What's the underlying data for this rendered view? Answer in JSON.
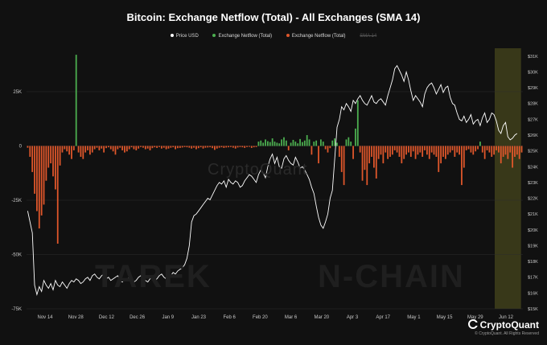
{
  "title": "Bitcoin: Exchange Netflow (Total) - All Exchanges (SMA 14)",
  "legend": [
    {
      "label": "Price USD",
      "color": "#ffffff",
      "enabled": true
    },
    {
      "label": "Exchange Netflow (Total)",
      "color": "#4caf50",
      "enabled": true
    },
    {
      "label": "Exchange Netflow (Total)",
      "color": "#e0572b",
      "enabled": true
    },
    {
      "label": "SMA 14",
      "color": "#555555",
      "enabled": false
    }
  ],
  "watermark": "CryptoQuant",
  "brand": "CryptoQuant",
  "copyright": "© CryptoQuant. All Rights Reserved",
  "overlay_text_left": "TAREK",
  "overlay_text_right": "N-CHAIN",
  "colors": {
    "background": "#111111",
    "inflow": "#4caf50",
    "outflow": "#e0572b",
    "price": "#ffffff",
    "highlight": "#5a5a20"
  },
  "chart_data": {
    "type": "bar",
    "title": "Bitcoin: Exchange Netflow (Total) - All Exchanges (SMA 14)",
    "x_ticks": [
      "Nov 14",
      "Nov 28",
      "Dec 12",
      "Dec 26",
      "Jan 9",
      "Jan 23",
      "Feb 6",
      "Feb 20",
      "Mar 6",
      "Mar 20",
      "Apr 3",
      "Apr 17",
      "May 1",
      "May 15",
      "May 29",
      "Jun 12"
    ],
    "left_axis": {
      "ticks": [
        "25K",
        "0",
        "-25K",
        "-50K",
        "-75K"
      ],
      "ylim": [
        -75000,
        45000
      ]
    },
    "right_axis": {
      "ticks": [
        "$31K",
        "$30K",
        "$29K",
        "$28K",
        "$27K",
        "$26K",
        "$25K",
        "$24K",
        "$23K",
        "$22K",
        "$21K",
        "$20K",
        "$19K",
        "$18K",
        "$17K",
        "$16K",
        "$15K"
      ],
      "ylim": [
        15000,
        31500
      ]
    },
    "highlight_range": {
      "start_day": 203,
      "end_day": 213
    },
    "series": [
      {
        "name": "Exchange Netflow (Total)",
        "kind": "bar",
        "values": [
          -800,
          -5000,
          -12000,
          -22000,
          -30000,
          -38000,
          -32000,
          -27000,
          -16000,
          -10000,
          -8000,
          -14000,
          -20000,
          -45000,
          -9000,
          -3000,
          -1500,
          -2500,
          -4000,
          -6000,
          -2000,
          42000,
          -3000,
          -5000,
          -6000,
          -3000,
          -2000,
          -4000,
          -3000,
          -1500,
          -800,
          -2000,
          -1200,
          -3000,
          -1000,
          -600,
          -1500,
          -2500,
          -4000,
          -1500,
          -800,
          -2000,
          -3000,
          -2500,
          -1500,
          -600,
          -1500,
          -2000,
          -1200,
          -500,
          -800,
          -1500,
          -1200,
          -2000,
          -1000,
          -600,
          -900,
          -500,
          -1200,
          -800,
          -1500,
          -1200,
          -800,
          -600,
          -1500,
          -1000,
          -900,
          -700,
          -500,
          -600,
          -800,
          -1200,
          -800,
          -1500,
          -1000,
          -600,
          -1200,
          -800,
          -700,
          -600,
          -1000,
          -1800,
          -1200,
          -800,
          -600,
          -900,
          -700,
          -600,
          -500,
          -800,
          -1200,
          -700,
          -500,
          -600,
          -900,
          -500,
          -400,
          -900,
          -600,
          -500,
          2000,
          2500,
          1500,
          3000,
          2200,
          1800,
          3500,
          2000,
          1500,
          1200,
          3000,
          4000,
          2500,
          -2000,
          1500,
          2800,
          2000,
          1200,
          3200,
          1800,
          2500,
          5000,
          3000,
          -4000,
          2000,
          2500,
          -8000,
          3000,
          2000,
          -1500,
          -3000,
          -1000,
          2500,
          3500,
          1500,
          -5000,
          -12000,
          -18000,
          3000,
          4000,
          2000,
          -6000,
          8000,
          21000,
          -3000,
          -16000,
          -11000,
          -18000,
          -8000,
          -5000,
          -10000,
          -15000,
          -6000,
          -4000,
          -8000,
          -3000,
          -6000,
          -5000,
          -4000,
          -2000,
          -3000,
          -5000,
          -8000,
          -6000,
          -4000,
          -3000,
          -5000,
          -2500,
          -6000,
          -4000,
          -3000,
          -5000,
          -2000,
          -4000,
          -6000,
          -3000,
          -4000,
          -5000,
          -12000,
          -8000,
          -5000,
          -6000,
          -4000,
          -3000,
          -2000,
          -5000,
          -3000,
          -4000,
          -18000,
          -10000,
          -2000,
          -1500,
          -3000,
          -4000,
          -2500,
          -1500,
          2000,
          -3000,
          -6000,
          -2000,
          -3000,
          -5000,
          -4000,
          -2000,
          -3000,
          -8000,
          -5000,
          -4000,
          -6000,
          -3000,
          -10000,
          -5000,
          -4000,
          -6000,
          -3000
        ]
      },
      {
        "name": "Price USD",
        "kind": "line",
        "values": [
          21200,
          20500,
          19800,
          16500,
          15900,
          16400,
          16100,
          16800,
          16500,
          16300,
          16600,
          16200,
          16800,
          16500,
          16400,
          16700,
          16500,
          16300,
          16600,
          16800,
          16700,
          16900,
          16800,
          16600,
          16700,
          16900,
          17000,
          16800,
          17100,
          17200,
          17000,
          16900,
          17100,
          17200,
          16900,
          17000,
          16800,
          16900,
          17000,
          17100,
          16800,
          16700,
          16900,
          16800,
          17000,
          16900,
          16700,
          16800,
          17000,
          17100,
          16900,
          16800,
          16700,
          16900,
          17000,
          16800,
          16900,
          17100,
          17200,
          17000,
          16900,
          17000,
          17100,
          17300,
          17200,
          17400,
          17500,
          17600,
          17800,
          18200,
          19000,
          20500,
          20900,
          21000,
          21200,
          21400,
          21600,
          21800,
          22000,
          21900,
          22200,
          22500,
          22800,
          23000,
          22900,
          23100,
          22700,
          23200,
          23000,
          22900,
          23100,
          23000,
          22700,
          22800,
          23100,
          23300,
          23500,
          23400,
          23200,
          23000,
          23500,
          23800,
          23600,
          23300,
          24000,
          24500,
          24800,
          24200,
          24600,
          24000,
          23900,
          24500,
          24700,
          24400,
          24200,
          24100,
          24600,
          24300,
          23900,
          24000,
          23800,
          23500,
          23200,
          22700,
          22300,
          21500,
          20800,
          20300,
          20100,
          20500,
          21000,
          22000,
          22500,
          24500,
          26500,
          27000,
          27800,
          27600,
          28000,
          27800,
          27500,
          28200,
          28000,
          28300,
          28500,
          28200,
          28000,
          27900,
          28200,
          28500,
          28100,
          28000,
          28200,
          28300,
          28100,
          27900,
          28500,
          29000,
          29500,
          30200,
          30400,
          30100,
          29800,
          29400,
          30000,
          29500,
          28800,
          28200,
          28500,
          28300,
          28100,
          27800,
          28600,
          29000,
          29200,
          29300,
          29000,
          28600,
          28900,
          29200,
          28700,
          29000,
          29100,
          28400,
          28000,
          27900,
          27400,
          27000,
          26900,
          27200,
          26800,
          27000,
          27300,
          26700,
          26900,
          27000,
          26600,
          27100,
          27400,
          26800,
          27000,
          27400,
          27300,
          26900,
          26300,
          26100,
          26600,
          26800,
          25900,
          25700,
          25800,
          26000,
          26100
        ]
      }
    ]
  }
}
